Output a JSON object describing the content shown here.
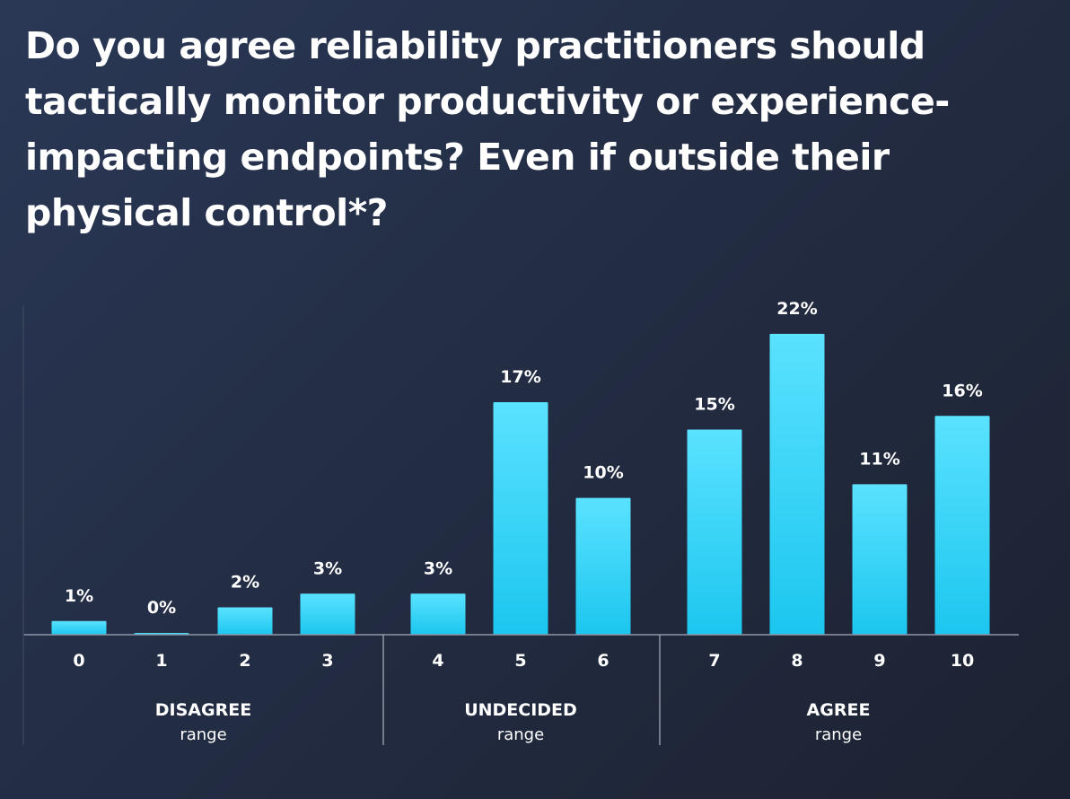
{
  "title": "Do you agree reliability practitioners should tactically monitor productivity or experience-impacting endpoints? Even if outside their physical control*?",
  "chart_data": {
    "type": "bar",
    "categories": [
      "0",
      "1",
      "2",
      "3",
      "4",
      "5",
      "6",
      "7",
      "8",
      "9",
      "10"
    ],
    "values": [
      1,
      0,
      2,
      3,
      3,
      17,
      10,
      15,
      22,
      11,
      16
    ],
    "value_labels": [
      "1%",
      "0%",
      "2%",
      "3%",
      "3%",
      "17%",
      "10%",
      "15%",
      "22%",
      "11%",
      "16%"
    ],
    "unit": "%",
    "ylim": [
      0,
      23.5
    ],
    "grid": false,
    "bar_color": "#2ccdf2",
    "groups": [
      {
        "label": "DISAGREE",
        "sublabel": "range",
        "categories": [
          "0",
          "1",
          "2",
          "3"
        ]
      },
      {
        "label": "UNDECIDED",
        "sublabel": "range",
        "categories": [
          "4",
          "5",
          "6"
        ]
      },
      {
        "label": "AGREE",
        "sublabel": "range",
        "categories": [
          "7",
          "8",
          "9",
          "10"
        ]
      }
    ]
  }
}
